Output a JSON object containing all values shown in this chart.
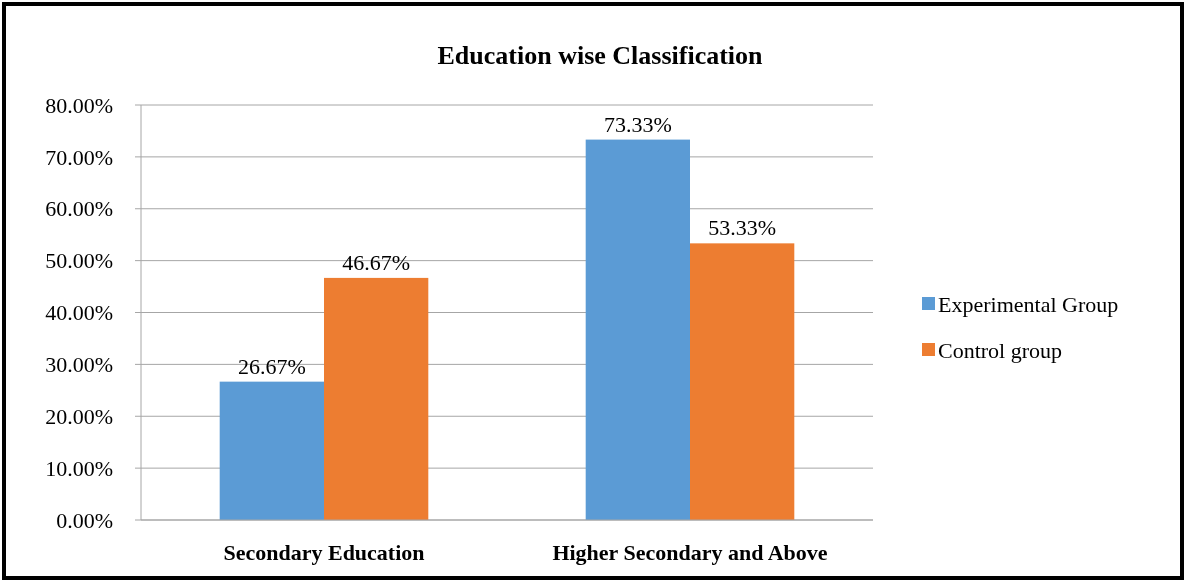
{
  "chart_data": {
    "type": "bar",
    "title": "Education wise Classification",
    "categories": [
      "Secondary Education",
      "Higher Secondary and Above"
    ],
    "series": [
      {
        "name": "Experimental Group",
        "color": "#5b9bd5",
        "values": [
          26.67,
          73.33
        ],
        "value_labels": [
          "26.67%",
          "73.33%"
        ]
      },
      {
        "name": "Control group",
        "color": "#ed7d31",
        "values": [
          46.67,
          53.33
        ],
        "value_labels": [
          "46.67%",
          "53.33%"
        ]
      }
    ],
    "ylim": [
      0,
      80
    ],
    "yticks": [
      {
        "value": 0,
        "label": "0.00%"
      },
      {
        "value": 10,
        "label": "10.00%"
      },
      {
        "value": 20,
        "label": "20.00%"
      },
      {
        "value": 30,
        "label": "30.00%"
      },
      {
        "value": 40,
        "label": "40.00%"
      },
      {
        "value": 50,
        "label": "50.00%"
      },
      {
        "value": 60,
        "label": "60.00%"
      },
      {
        "value": 70,
        "label": "70.00%"
      },
      {
        "value": 80,
        "label": "80.00%"
      }
    ],
    "grid": "y",
    "legend": "right"
  }
}
